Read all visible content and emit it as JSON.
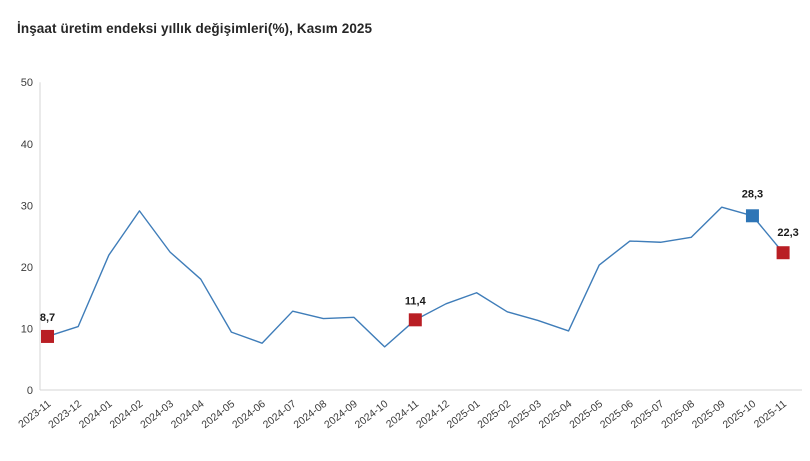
{
  "chart_data": {
    "type": "line",
    "title": "İnşaat üretim endeksi yıllık değişimleri(%), Kasım 2025",
    "xlabel": "",
    "ylabel": "",
    "ylim": [
      0,
      50
    ],
    "yticks": [
      0,
      10,
      20,
      30,
      40,
      50
    ],
    "grid": false,
    "legend": false,
    "categories": [
      "2023-11",
      "2023-12",
      "2024-01",
      "2024-02",
      "2024-03",
      "2024-04",
      "2024-05",
      "2024-06",
      "2024-07",
      "2024-08",
      "2024-09",
      "2024-10",
      "2024-11",
      "2024-12",
      "2025-01",
      "2025-02",
      "2025-03",
      "2025-04",
      "2025-05",
      "2025-06",
      "2025-07",
      "2025-08",
      "2025-09",
      "2025-10",
      "2025-11"
    ],
    "values": [
      8.7,
      10.3,
      21.9,
      29.1,
      22.4,
      18.0,
      9.4,
      7.6,
      12.8,
      11.6,
      11.8,
      7.0,
      11.4,
      14.0,
      15.8,
      12.7,
      11.3,
      9.6,
      20.3,
      24.2,
      24.0,
      24.8,
      29.7,
      28.3,
      22.3
    ],
    "annotations": [
      {
        "category": "2023-11",
        "value": 8.7,
        "label": "8,7",
        "marker_color": "#b91e24"
      },
      {
        "category": "2024-11",
        "value": 11.4,
        "label": "11,4",
        "marker_color": "#b91e24"
      },
      {
        "category": "2025-10",
        "value": 28.3,
        "label": "28,3",
        "marker_color": "#2e75b6"
      },
      {
        "category": "2025-11",
        "value": 22.3,
        "label": "22,3",
        "marker_color": "#b91e24"
      }
    ],
    "colors": {
      "line": "#3f7db9",
      "marker_default": "#b91e24",
      "marker_highlight": "#2e75b6",
      "axis": "#d6d6d6",
      "tick_label": "#3c3c3c",
      "annotation_text": "#1a1a1a"
    }
  }
}
